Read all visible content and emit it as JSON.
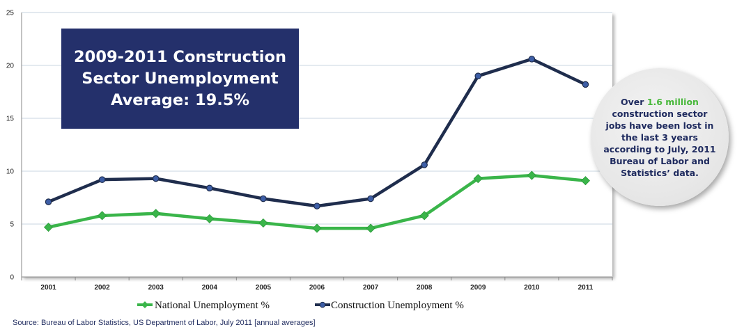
{
  "chart_data": {
    "type": "line",
    "title": "",
    "xlabel": "",
    "ylabel": "",
    "x": [
      "2001",
      "2002",
      "2003",
      "2004",
      "2005",
      "2006",
      "2007",
      "2008",
      "2009",
      "2010",
      "2011"
    ],
    "ylim": [
      0,
      25
    ],
    "yticks": [
      0,
      5,
      10,
      15,
      20,
      25
    ],
    "grid": true,
    "legend_position": "bottom",
    "series": [
      {
        "name": "National Unemployment %",
        "color": "#3ab54a",
        "marker": "diamond",
        "values": [
          4.7,
          5.8,
          6.0,
          5.5,
          5.1,
          4.6,
          4.6,
          5.8,
          9.3,
          9.6,
          9.1
        ]
      },
      {
        "name": "Construction Unemployment %",
        "color": "#1f2d4d",
        "marker": "circle",
        "values": [
          7.1,
          9.2,
          9.3,
          8.4,
          7.4,
          6.7,
          7.4,
          10.6,
          19.0,
          20.6,
          18.2
        ]
      }
    ]
  },
  "title_box": {
    "line1": "2009-2011 Construction",
    "line2": "Sector Unemployment",
    "line3": "Average: 19.5%"
  },
  "callout": {
    "prefix": "Over ",
    "highlight": "1.6 million",
    "body": "construction sector jobs have been lost in the last 3 years according to July, 2011 Bureau of Labor and Statistics’ data."
  },
  "source": "Source: Bureau of Labor Statistics, US Department of Labor,  July 2011 [annual averages]",
  "colors": {
    "title_box_bg": "#24306b",
    "national": "#3ab54a",
    "construction": "#1f2d4d",
    "highlight": "#48b83a",
    "source_text": "#1e2a5e"
  }
}
